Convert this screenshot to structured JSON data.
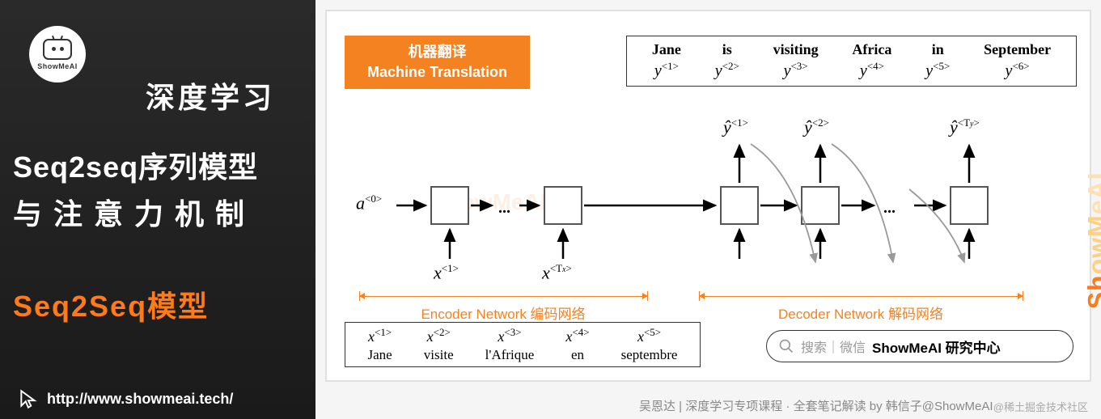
{
  "sidebar": {
    "logo_text": "ShowMeAI",
    "h1": "深度学习",
    "h2": "Seq2seq序列模型",
    "h3": "与注意力机制",
    "h4": "Seq2Seq模型",
    "url": "http://www.showmeai.tech/"
  },
  "badge": {
    "line1": "机器翻译",
    "line2": "Machine Translation"
  },
  "output_sentence": [
    {
      "word": "Jane",
      "sym": "y",
      "idx": "<1>"
    },
    {
      "word": "is",
      "sym": "y",
      "idx": "<2>"
    },
    {
      "word": "visiting",
      "sym": "y",
      "idx": "<3>"
    },
    {
      "word": "Africa",
      "sym": "y",
      "idx": "<4>"
    },
    {
      "word": "in",
      "sym": "y",
      "idx": "<5>"
    },
    {
      "word": "September",
      "sym": "y",
      "idx": "<6>"
    }
  ],
  "input_sentence": [
    {
      "sym": "x",
      "idx": "<1>",
      "word": "Jane"
    },
    {
      "sym": "x",
      "idx": "<2>",
      "word": "visite"
    },
    {
      "sym": "x",
      "idx": "<3>",
      "word": "l'Afrique"
    },
    {
      "sym": "x",
      "idx": "<4>",
      "word": "en"
    },
    {
      "sym": "x",
      "idx": "<5>",
      "word": "septembre"
    }
  ],
  "diagram": {
    "a0": "a",
    "a0_sup": "<0>",
    "enc_in1": {
      "sym": "x",
      "idx": "<1>"
    },
    "enc_inT": {
      "sym": "x",
      "idx": "<T",
      "sub": "x",
      "idx2": ">"
    },
    "dec_out1": {
      "sym": "ŷ",
      "idx": "<1>"
    },
    "dec_out2": {
      "sym": "ŷ",
      "idx": "<2>"
    },
    "dec_outT": {
      "sym": "ŷ",
      "idx": "<T",
      "sub": "y",
      "idx2": ">"
    },
    "encoder_label": "Encoder Network 编码网络",
    "decoder_label": "Decoder Network 解码网络"
  },
  "search": {
    "t1": "搜索｜微信",
    "t2": "ShowMeAI 研究中心"
  },
  "footer": "吴恩达 | 深度学习专项课程 · 全套笔记解读 by 韩信子@ShowMeAI",
  "corner": "@稀土掘金技术社区",
  "colors": {
    "orange": "#f58220",
    "orange_text": "#ff7a1a",
    "sidebar_bg": "#1f1f1f",
    "panel_border": "#e0e0e0",
    "box_border": "#555555",
    "arrow": "#000000",
    "curve": "#888888"
  }
}
